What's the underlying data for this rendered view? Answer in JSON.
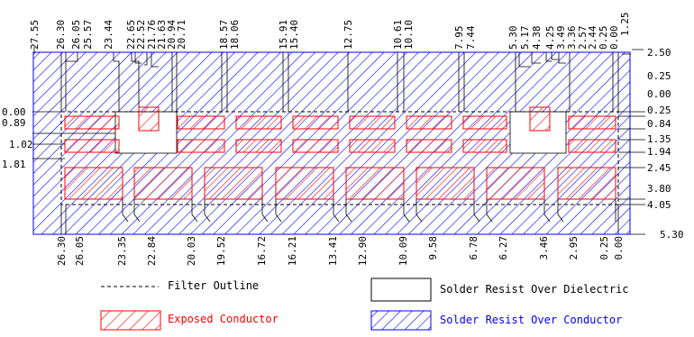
{
  "top_labels": [
    "27.55",
    "26.30",
    "26.05",
    "25.57",
    "23.44",
    "22.65",
    "22.52",
    "21.76",
    "21.63",
    "20.94",
    "20.71",
    "18.57",
    "18.06",
    "15.91",
    "15.40",
    "12.75",
    "10.61",
    "10.10",
    "7.95",
    "7.44",
    "5.30",
    "5.17",
    "4.38",
    "4.25",
    "3.49",
    "3.36",
    "2.57",
    "2.44",
    "0.25",
    "0.00",
    "1.25"
  ],
  "bottom_labels": [
    "26.30",
    "26.05",
    "23.35",
    "22.84",
    "20.03",
    "19.52",
    "16.72",
    "16.21",
    "13.41",
    "12.90",
    "10.09",
    "9.58",
    "6.78",
    "6.27",
    "3.46",
    "2.95",
    "0.25",
    "0.00"
  ],
  "left_labels": [
    "0.00",
    "0.89",
    "1.02",
    "1.81"
  ],
  "right_labels": [
    "2.50",
    "0.25",
    "0.00",
    "0.25",
    "0.84",
    "1.35",
    "1.94",
    "2.45",
    "3.80",
    "4.05",
    "5.30"
  ],
  "legend": {
    "filter_outline": "Filter Outline",
    "exposed_conductor": "Exposed Conductor",
    "solder_resist_dielectric": "Solder Resist Over Dielectric",
    "solder_resist_conductor": "Solder Resist Over Conductor"
  },
  "colors": {
    "exposed_conductor": "#ff0000",
    "solder_resist_conductor": "#0000ff",
    "filter_outline": "#000000",
    "dimension_lines": "#000000"
  }
}
